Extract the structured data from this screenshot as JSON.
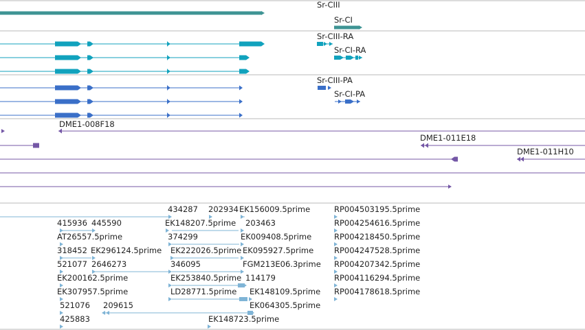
{
  "colors": {
    "gene": "#3e9494",
    "rna": "#11a2bd",
    "protein": "#3a6fc8",
    "clone": "#7457a6",
    "est": "#7fb4d6",
    "divider": "#b9b9b9",
    "text": "#222222"
  },
  "tracks": {
    "gene_track": {
      "labels": [
        "Sr-CIII",
        "Sr-CI"
      ]
    },
    "transcript_track": {
      "labels": [
        "Sr-CIII-RA",
        "Sr-CI-RA"
      ]
    },
    "protein_track": {
      "labels": [
        "Sr-CIII-PA",
        "Sr-CI-PA"
      ]
    },
    "clone_track": {
      "labels": [
        "DME1-008F18",
        "DME1-011E18",
        "DME1-011H10"
      ]
    },
    "est_track": {
      "labels": [
        "434287",
        "202934",
        "EK156009.5prime",
        "RP004503195.5prime",
        "415936",
        "445590",
        "EK148207.5prime",
        "203463",
        "RP004254616.5prime",
        "AT26557.5prime",
        "374299",
        "EK009408.5prime",
        "RP004218450.5prime",
        "318452",
        "EK296124.5prime",
        "EK222026.5prime",
        "EK095927.5prime",
        "RP004247528.5prime",
        "521077",
        "2646273",
        "346095",
        "FGM213E06.3prime",
        "RP004207342.5prime",
        "EK200162.5prime",
        "EK253840.5prime",
        "114179",
        "RP004116294.5prime",
        "EK307957.5prime",
        "LD28771.5prime",
        "EK148109.5prime",
        "RP004178618.5prime",
        "521076",
        "209615",
        "EK064305.5prime",
        "425883",
        "EK148723.5prime"
      ]
    }
  }
}
